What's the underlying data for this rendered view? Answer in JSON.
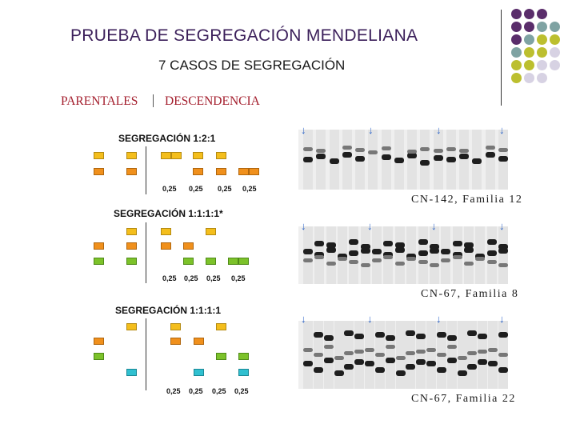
{
  "header": {
    "title": "PRUEBA DE SEGREGACIÓN MENDELIANA",
    "subtitle": "7 CASOS DE SEGREGACIÓN"
  },
  "columns": {
    "parents": "PARENTALES",
    "offspring": "DESCENDENCIA"
  },
  "segregations": [
    {
      "title": "SEGREGACIÓN  1:2:1",
      "ratios": [
        "0,25",
        "0,25",
        "0,25",
        "0,25"
      ]
    },
    {
      "title": "SEGREGACIÓN 1:1:1:1*",
      "ratios": [
        "0,25",
        "0,25",
        "0,25",
        "0,25"
      ]
    },
    {
      "title": "SEGREGACIÓN 1:1:1:1",
      "ratios": [
        "0,25",
        "0,25",
        "0,25",
        "0,25"
      ]
    }
  ],
  "gels": [
    {
      "caption": "CN-142, Familia 12"
    },
    {
      "caption": "CN-67, Familia 8"
    },
    {
      "caption": "CN-67, Familia 22"
    }
  ],
  "colors": {
    "title": "#3b1f5a",
    "header_red": "#a31d2c",
    "allele_yellow": "#f4be1c",
    "allele_orange": "#f0901c",
    "allele_green": "#7cc22a",
    "allele_cyan": "#30c0d0",
    "dot_purple": "#5a2d6b",
    "dot_teal": "#7fa3a3",
    "dot_olive": "#bcbf2f",
    "dot_lilac": "#d7d2e3",
    "arrow_blue": "#2a62c8"
  }
}
